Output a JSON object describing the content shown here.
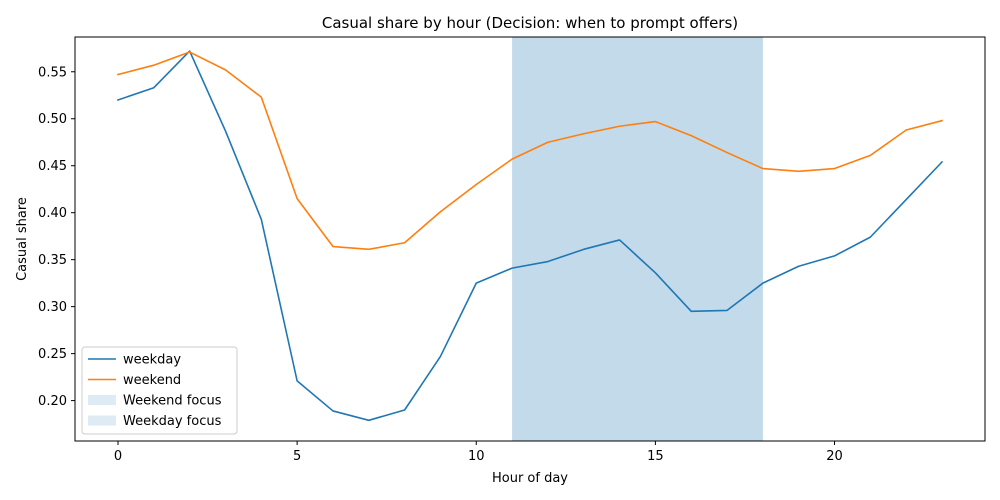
{
  "chart_data": {
    "type": "line",
    "title": "Casual share by hour (Decision: when to prompt offers)",
    "xlabel": "Hour of day",
    "ylabel": "Casual share",
    "xlim": [
      -1.2,
      24.2
    ],
    "ylim": [
      0.157,
      0.587
    ],
    "x_ticks": [
      0,
      5,
      10,
      15,
      20
    ],
    "y_ticks": [
      0.2,
      0.25,
      0.3,
      0.35,
      0.4,
      0.45,
      0.5,
      0.55
    ],
    "y_tick_labels": [
      "0.20",
      "0.25",
      "0.30",
      "0.35",
      "0.40",
      "0.45",
      "0.50",
      "0.55"
    ],
    "x": [
      0,
      1,
      2,
      3,
      4,
      5,
      6,
      7,
      8,
      9,
      10,
      11,
      12,
      13,
      14,
      15,
      16,
      17,
      18,
      19,
      20,
      21,
      22,
      23
    ],
    "series": [
      {
        "name": "weekday",
        "color": "#1f77b4",
        "values": [
          0.52,
          0.533,
          0.572,
          0.487,
          0.393,
          0.221,
          0.189,
          0.179,
          0.19,
          0.247,
          0.325,
          0.341,
          0.348,
          0.361,
          0.371,
          0.336,
          0.295,
          0.296,
          0.325,
          0.343,
          0.354,
          0.374,
          0.414,
          0.454
        ]
      },
      {
        "name": "weekend",
        "color": "#ff7f0e",
        "values": [
          0.547,
          0.557,
          0.571,
          0.552,
          0.523,
          0.415,
          0.364,
          0.361,
          0.368,
          0.401,
          0.43,
          0.457,
          0.475,
          0.484,
          0.492,
          0.497,
          0.482,
          0.464,
          0.447,
          0.444,
          0.447,
          0.461,
          0.488,
          0.498
        ]
      }
    ],
    "shaded_regions": [
      {
        "name": "Weekend focus",
        "x_start": 11,
        "x_end": 18,
        "color": "#1f77b4",
        "alpha": 0.15
      },
      {
        "name": "Weekday focus",
        "x_start": 11,
        "x_end": 18,
        "color": "#1f77b4",
        "alpha": 0.15
      }
    ],
    "legend": {
      "location": "lower-left",
      "entries": [
        "weekday",
        "weekend",
        "Weekend focus",
        "Weekday focus"
      ]
    },
    "grid": false
  }
}
